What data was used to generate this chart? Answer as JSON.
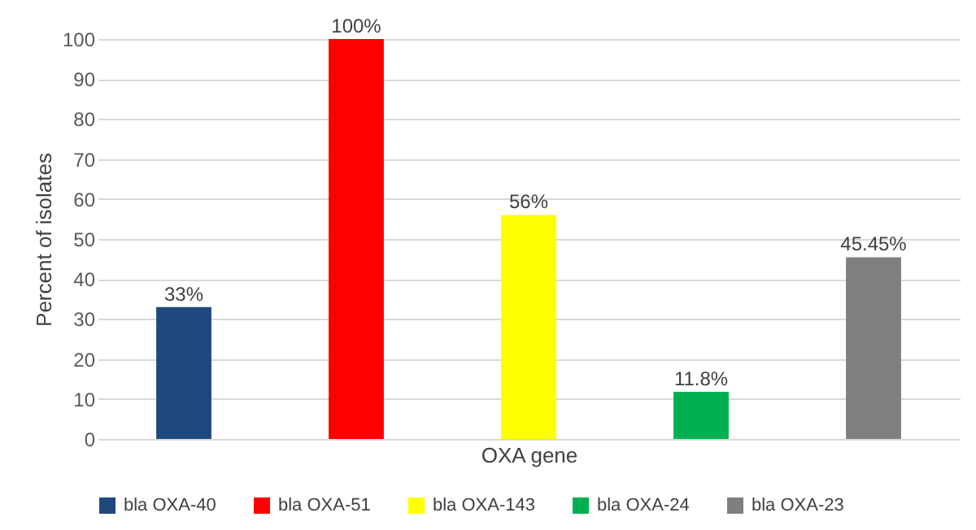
{
  "chart_data": {
    "type": "bar",
    "xlabel": "OXA gene",
    "ylabel": "Percent of isolates",
    "categories": [
      null,
      null,
      null,
      null,
      null
    ],
    "series": [
      {
        "name": "bla OXA-40",
        "color": "#1f497d",
        "values": [
          33,
          null,
          null,
          null,
          null
        ],
        "value_labels": [
          "33%",
          null,
          null,
          null,
          null
        ]
      },
      {
        "name": "bla OXA-51",
        "color": "#ff0000",
        "values": [
          null,
          100,
          null,
          null,
          null
        ],
        "value_labels": [
          null,
          "100%",
          null,
          null,
          null
        ]
      },
      {
        "name": "bla OXA-143",
        "color": "#ffff00",
        "values": [
          null,
          null,
          56,
          null,
          null
        ],
        "value_labels": [
          null,
          null,
          "56%",
          null,
          null
        ]
      },
      {
        "name": "bla OXA-24",
        "color": "#00b050",
        "values": [
          null,
          null,
          null,
          11.8,
          null
        ],
        "value_labels": [
          null,
          null,
          null,
          "11.8%",
          null
        ]
      },
      {
        "name": "bla OXA-23",
        "color": "#7f7f7f",
        "values": [
          null,
          null,
          null,
          null,
          45.45
        ],
        "value_labels": [
          null,
          null,
          null,
          null,
          "45.45%"
        ]
      }
    ],
    "ylim": [
      0,
      100
    ],
    "yticks": [
      0,
      10,
      20,
      30,
      40,
      50,
      60,
      70,
      80,
      90,
      100
    ],
    "grid": "y",
    "legend": "bottom",
    "tick_labels": "y"
  }
}
